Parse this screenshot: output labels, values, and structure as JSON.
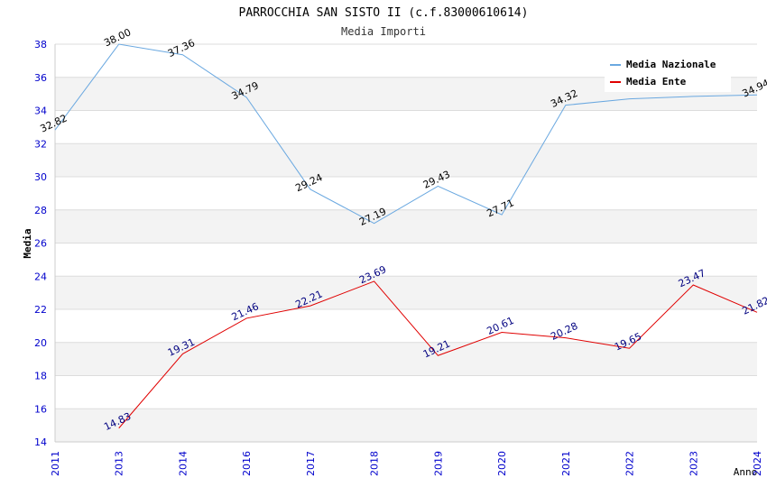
{
  "chart_data": {
    "type": "line",
    "title": "PARROCCHIA SAN SISTO II (c.f.83000610614)",
    "subtitle": "Media Importi",
    "ylabel": "Media",
    "xlabel": "Anno",
    "ylim": [
      14,
      38
    ],
    "yticks": [
      14,
      16,
      18,
      20,
      22,
      24,
      26,
      28,
      30,
      32,
      34,
      36,
      38
    ],
    "categories": [
      "2011",
      "2013",
      "2014",
      "2016",
      "2017",
      "2018",
      "2019",
      "2020",
      "2021",
      "2022",
      "2023",
      "2024"
    ],
    "series": [
      {
        "name": "Media Nazionale",
        "color": "#6aa8e0",
        "label_color": "#000000",
        "values": [
          32.82,
          38.0,
          37.36,
          34.79,
          29.24,
          27.19,
          29.43,
          27.71,
          34.32,
          34.7,
          34.85,
          34.94
        ],
        "labels": [
          "32.82",
          "38.00",
          "37.36",
          "34.79",
          "29.24",
          "27.19",
          "29.43",
          "27.71",
          "34.32",
          "",
          "",
          "34.94"
        ]
      },
      {
        "name": "Media Ente",
        "color": "#e00000",
        "label_color": "#000080",
        "values": [
          null,
          14.83,
          19.31,
          21.46,
          22.21,
          23.69,
          19.21,
          20.61,
          20.28,
          19.65,
          23.47,
          21.82
        ],
        "labels": [
          "",
          "14.83",
          "19.31",
          "21.46",
          "22.21",
          "23.69",
          "19.21",
          "20.61",
          "20.28",
          "19.65",
          "23.47",
          "21.82"
        ]
      }
    ],
    "legend": "top-right",
    "grid": true,
    "band_colors": [
      "#f3f3f3",
      "#ffffff"
    ],
    "tick_color": "#0000cc"
  }
}
